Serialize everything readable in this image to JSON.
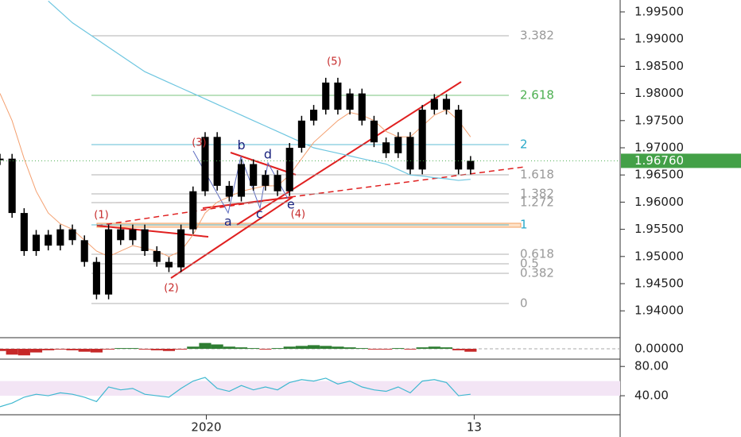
{
  "chart_data": {
    "type": "candlestick",
    "x": [
      0,
      1,
      2,
      3,
      4,
      5,
      6,
      7,
      8,
      9,
      10,
      11,
      12,
      13,
      14,
      15,
      16,
      17,
      18,
      19,
      20,
      21,
      22,
      23,
      24,
      25,
      26,
      27,
      28,
      29,
      30,
      31,
      32,
      33,
      34,
      35,
      36,
      37,
      38,
      39
    ],
    "xlim": [
      0,
      51.2
    ],
    "xticks": [
      {
        "value": 17.1,
        "label": "2020"
      },
      {
        "value": 39.3,
        "label": "13"
      }
    ],
    "ylim": [
      1.93506,
      1.99719
    ],
    "yticks": [
      {
        "value": 1.995,
        "label": "1.99500"
      },
      {
        "value": 1.99,
        "label": "1.99000"
      },
      {
        "value": 1.985,
        "label": "1.98500"
      },
      {
        "value": 1.98,
        "label": "1.98000"
      },
      {
        "value": 1.975,
        "label": "1.97500"
      },
      {
        "value": 1.97,
        "label": "1.97000"
      },
      {
        "value": 1.965,
        "label": "1.96500"
      },
      {
        "value": 1.96,
        "label": "1.96000"
      },
      {
        "value": 1.955,
        "label": "1.95500"
      },
      {
        "value": 1.95,
        "label": "1.95000"
      },
      {
        "value": 1.945,
        "label": "1.94500"
      },
      {
        "value": 1.94,
        "label": "1.94000"
      }
    ],
    "last_price": {
      "value": 1.9676,
      "label": "1.96760"
    },
    "series": [
      {
        "name": "price",
        "color": "#000000",
        "values": [
          1.968,
          1.958,
          1.951,
          1.954,
          1.952,
          1.955,
          1.953,
          1.949,
          1.943,
          1.955,
          1.953,
          1.955,
          1.951,
          1.949,
          1.948,
          1.955,
          1.962,
          1.972,
          1.963,
          1.961,
          1.967,
          1.963,
          1.965,
          1.962,
          1.97,
          1.975,
          1.977,
          1.982,
          1.977,
          1.98,
          1.975,
          1.971,
          1.969,
          1.972,
          1.966,
          1.977,
          1.979,
          1.977,
          1.966,
          1.9676
        ]
      },
      {
        "name": "slow-ma",
        "color": "#6ec6e0",
        "values": [
          null,
          null,
          null,
          null,
          1.997,
          1.995,
          1.993,
          1.9915,
          1.99,
          1.9885,
          1.987,
          1.9855,
          1.984,
          1.983,
          1.982,
          1.981,
          1.98,
          1.979,
          1.978,
          1.977,
          1.976,
          1.975,
          1.974,
          1.973,
          1.972,
          1.971,
          1.97,
          1.9695,
          1.969,
          1.9685,
          1.968,
          1.9675,
          1.967,
          1.966,
          1.965,
          1.9648,
          1.9645,
          1.9643,
          1.964,
          1.9642
        ]
      },
      {
        "name": "fast-ma",
        "color": "#f4a070",
        "values": [
          1.98,
          1.975,
          1.968,
          1.962,
          1.958,
          1.956,
          1.955,
          1.953,
          1.951,
          1.95,
          1.951,
          1.952,
          1.9515,
          1.951,
          1.95,
          1.951,
          1.954,
          1.958,
          1.96,
          1.961,
          1.962,
          1.9625,
          1.963,
          1.963,
          1.965,
          1.968,
          1.971,
          1.973,
          1.975,
          1.9765,
          1.976,
          1.975,
          1.973,
          1.972,
          1.972,
          1.974,
          1.976,
          1.977,
          1.975,
          1.972
        ]
      }
    ],
    "fib_levels": [
      {
        "label": "3.382",
        "price": 1.99061,
        "color": "#999999"
      },
      {
        "label": "2.618",
        "price": 1.97965,
        "color": "#4caf50"
      },
      {
        "label": "2",
        "price": 1.97058,
        "color": "#2aa9c9"
      },
      {
        "label": "1.618",
        "price": 1.96503,
        "color": "#999999"
      },
      {
        "label": "1.382",
        "price": 1.96152,
        "color": "#999999"
      },
      {
        "label": "1.272",
        "price": 1.95991,
        "color": "#999999"
      },
      {
        "label": "1",
        "price": 1.95582,
        "color": "#2aa9c9"
      },
      {
        "label": "0.618",
        "price": 1.95041,
        "color": "#999999"
      },
      {
        "label": "0.5",
        "price": 1.94866,
        "color": "#999999"
      },
      {
        "label": "0.382",
        "price": 1.9469,
        "color": "#999999"
      },
      {
        "label": "0",
        "price": 1.94135,
        "color": "#999999"
      }
    ],
    "annotations": [
      {
        "label": "(1)",
        "x": 8.4,
        "y": 1.9576,
        "color": "#c62828"
      },
      {
        "label": "(2)",
        "x": 14.2,
        "y": 1.9441,
        "color": "#c62828"
      },
      {
        "label": "(3)",
        "x": 16.5,
        "y": 1.9709,
        "color": "#c62828"
      },
      {
        "label": "(4)",
        "x": 24.7,
        "y": 1.9577,
        "color": "#c62828"
      },
      {
        "label": "(5)",
        "x": 27.7,
        "y": 1.9858,
        "color": "#c62828"
      },
      {
        "label": "a",
        "x": 18.9,
        "y": 1.9563,
        "color": "#1a237e"
      },
      {
        "label": "b",
        "x": 20.0,
        "y": 1.9704,
        "color": "#1a237e"
      },
      {
        "label": "c",
        "x": 21.5,
        "y": 1.9577,
        "color": "#1a237e"
      },
      {
        "label": "d",
        "x": 22.2,
        "y": 1.9687,
        "color": "#1a237e"
      },
      {
        "label": "e",
        "x": 24.1,
        "y": 1.9595,
        "color": "#1a237e"
      }
    ],
    "macd": {
      "ylim": [
        -0.0012,
        0.0012
      ],
      "yticks": [
        {
          "value": 0,
          "label": "0.00000"
        }
      ],
      "values": [
        -0.0003,
        -0.0008,
        -0.0009,
        -0.0005,
        -0.0002,
        -0.0001,
        -0.0002,
        -0.0004,
        -0.0005,
        -0.0001,
        0.0001,
        0.0001,
        -0.0001,
        -0.0002,
        -0.0003,
        -0.0001,
        0.0003,
        0.0008,
        0.0006,
        0.0003,
        0.0002,
        0.0001,
        -0.0001,
        0.0001,
        0.0003,
        0.0004,
        0.0005,
        0.0004,
        0.0003,
        0.0002,
        0.0001,
        -0.0001,
        -0.0001,
        0.0001,
        -0.0001,
        0.0002,
        0.0003,
        0.0002,
        -0.0002,
        -0.0004
      ]
    },
    "rsi": {
      "ylim": [
        14,
        90
      ],
      "yticks": [
        {
          "value": 80,
          "label": "80.00"
        },
        {
          "value": 40,
          "label": "40.00"
        }
      ],
      "band": [
        40,
        60
      ],
      "color": "#3fb8d0",
      "values": [
        25,
        30,
        38,
        42,
        40,
        44,
        42,
        38,
        32,
        52,
        48,
        50,
        42,
        40,
        38,
        50,
        60,
        65,
        50,
        46,
        54,
        48,
        52,
        48,
        58,
        62,
        60,
        64,
        56,
        60,
        52,
        48,
        46,
        52,
        44,
        60,
        62,
        58,
        40,
        42
      ]
    }
  }
}
